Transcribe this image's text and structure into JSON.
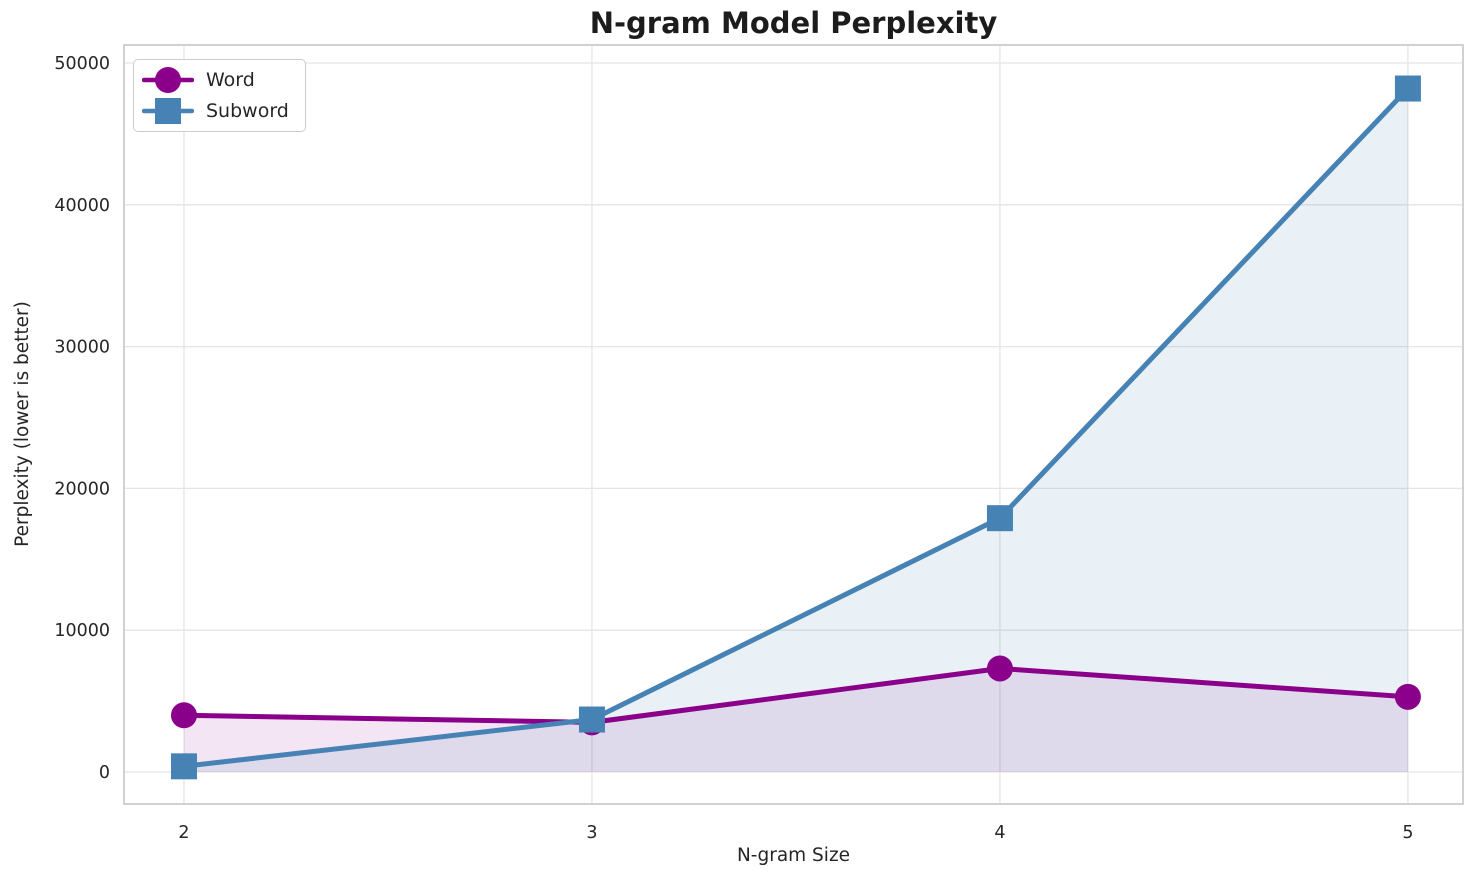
{
  "title": "N-gram Model Perplexity",
  "axes": {
    "x_label": "N-gram Size",
    "y_label": "Perplexity (lower is better)",
    "x_tick_labels": [
      "2",
      "3",
      "4",
      "5"
    ],
    "y_tick_labels": [
      "0",
      "10000",
      "20000",
      "30000",
      "40000",
      "50000"
    ]
  },
  "legend": {
    "items": [
      {
        "label": "Word",
        "marker": "circle",
        "color": "#8B008B"
      },
      {
        "label": "Subword",
        "marker": "square",
        "color": "#4682B4"
      }
    ]
  },
  "colors": {
    "background": "#ffffff",
    "grid": "#e5e5e5",
    "spine": "#cccccc",
    "tick_text": "#262626",
    "title_text": "#1c1c1c",
    "word_series": "#8B008B",
    "subword_series": "#4682B4"
  },
  "chart_data": {
    "type": "line",
    "title": "N-gram Model Perplexity",
    "xlabel": "N-gram Size",
    "ylabel": "Perplexity (lower is better)",
    "x": [
      2,
      3,
      4,
      5
    ],
    "series": [
      {
        "name": "Word",
        "values": [
          4000,
          3500,
          7300,
          5300
        ],
        "color": "#8B008B",
        "marker": "circle",
        "fill_to_zero": true,
        "fill_alpha": 0.1
      },
      {
        "name": "Subword",
        "values": [
          400,
          3700,
          17900,
          48200
        ],
        "color": "#4682B4",
        "marker": "square",
        "fill_to_zero": true,
        "fill_alpha": 0.12
      }
    ],
    "x_ticks": [
      2,
      3,
      4,
      5
    ],
    "y_ticks": [
      0,
      10000,
      20000,
      30000,
      40000,
      50000
    ],
    "xlim": [
      1.853,
      5.135
    ],
    "ylim": [
      -2257,
      51270
    ],
    "grid": true,
    "legend_position": "upper left"
  }
}
